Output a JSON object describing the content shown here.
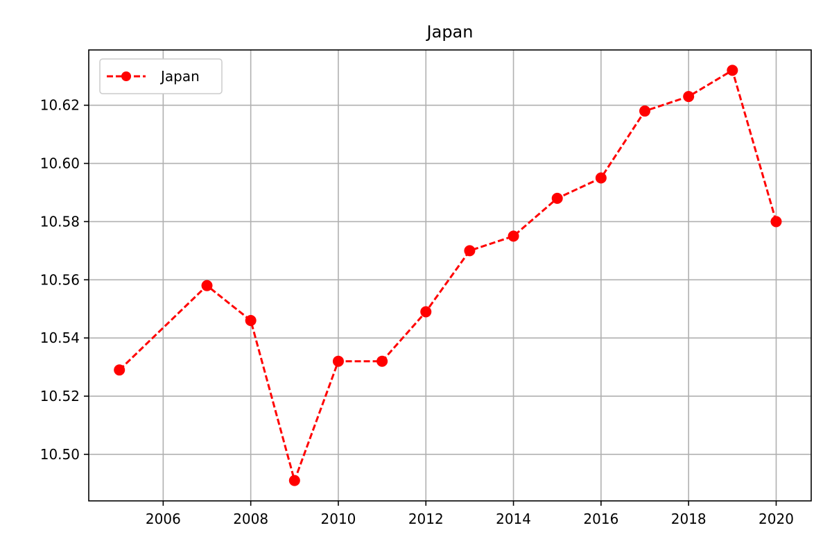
{
  "chart_data": {
    "type": "line",
    "title": "Japan",
    "xlabel": "",
    "ylabel": "",
    "x": [
      2005,
      2007,
      2008,
      2009,
      2010,
      2011,
      2012,
      2013,
      2014,
      2015,
      2016,
      2017,
      2018,
      2019,
      2020
    ],
    "series": [
      {
        "name": "Japan",
        "color": "#ff0000",
        "line_style": "dashed",
        "marker": "circle",
        "values": [
          10.529,
          10.558,
          10.546,
          10.491,
          10.532,
          10.532,
          10.549,
          10.57,
          10.575,
          10.588,
          10.595,
          10.618,
          10.623,
          10.632,
          10.58
        ]
      }
    ],
    "x_ticks": [
      "2006",
      "2008",
      "2010",
      "2012",
      "2014",
      "2016",
      "2018",
      "2020"
    ],
    "y_ticks": [
      "10.50",
      "10.52",
      "10.54",
      "10.56",
      "10.58",
      "10.60",
      "10.62"
    ],
    "xlim": [
      2004.3,
      2020.8
    ],
    "ylim": [
      10.484,
      10.639
    ],
    "grid": true,
    "legend_position": "top-left"
  }
}
